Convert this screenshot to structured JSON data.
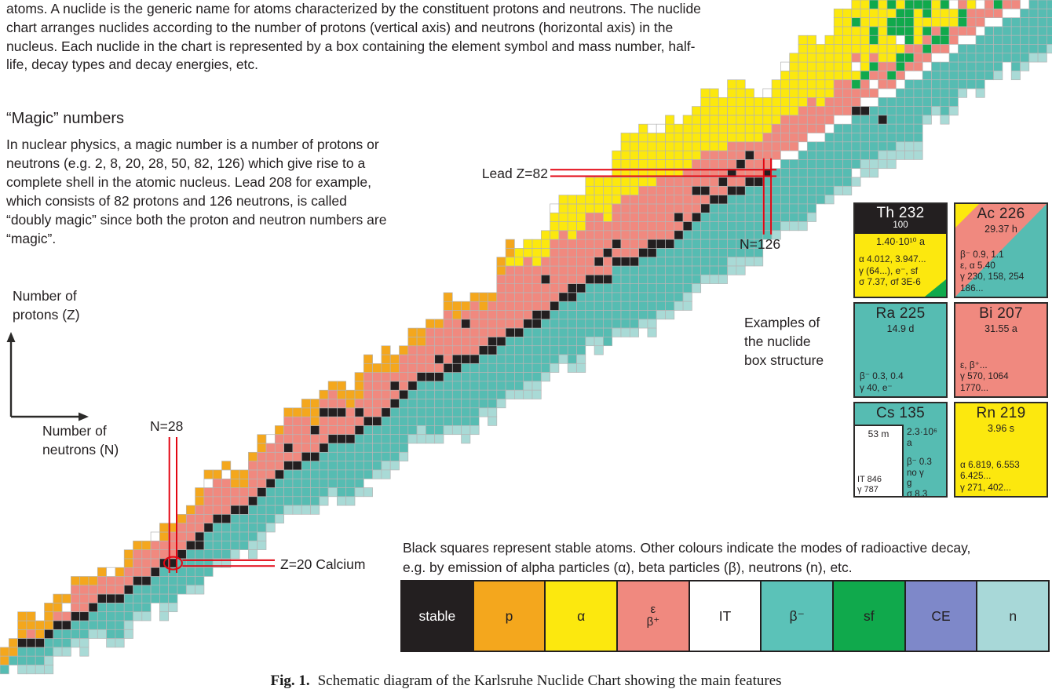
{
  "intro_text": "atoms. A nuclide is the generic name for atoms characterized by the constituent protons and neutrons. The nuclide chart arranges nuclides according to the number of protons (vertical axis) and neutrons (horizontal axis) in the nucleus. Each nuclide in the chart is represented by a box containing the element symbol and mass number, half-life, decay types and decay energies, etc.",
  "magic_numbers": {
    "heading": "“Magic” numbers",
    "body": "In nuclear physics, a magic number is a number of protons or neutrons (e.g. 2, 8, 20, 28, 50, 82, 126) which give rise to a complete shell in the atomic nucleus. Lead 208 for example, which consists of 82 protons and 126 neutrons, is called “doubly magic” since both the proton and neutron numbers are “magic”."
  },
  "axes": {
    "y_label": [
      "Number of",
      "protons (Z)"
    ],
    "x_label": [
      "Number of",
      "neutrons (N)"
    ]
  },
  "annotations": {
    "lead": "Lead Z=82",
    "n126": "N=126",
    "n28": "N=28",
    "z20": "Z=20 Calcium"
  },
  "examples_label": [
    "Examples of",
    "the nuclide",
    "box structure"
  ],
  "nuclide_boxes": [
    {
      "symbol": "Th 232",
      "abundance": "100",
      "halflife": "1.40·10¹⁰ a",
      "lines": [
        "α 4.012, 3.947...",
        "γ (64...), e⁻, sf",
        "σ 7.37, σf 3E-6"
      ]
    },
    {
      "symbol": "Ac 226",
      "halflife": "29.37 h",
      "lines": [
        "β⁻ 0.9, 1.1",
        "ε, α 5.40",
        "γ 230, 158, 254",
        "186..."
      ]
    },
    {
      "symbol": "Ra 225",
      "halflife": "14.9 d",
      "lines": [
        "β⁻ 0.3, 0.4",
        "γ 40, e⁻"
      ]
    },
    {
      "symbol": "Bi 207",
      "halflife": "31.55 a",
      "lines": [
        "ε, β⁺...",
        "γ 570, 1064",
        "1770..."
      ]
    },
    {
      "symbol": "Cs 135",
      "left_halflife": "53 m",
      "left_lines": [
        "IT 846",
        "γ 787"
      ],
      "right_halflife": "2.3·10⁶ a",
      "right_lines": [
        "β⁻ 0.3",
        "no γ",
        "g",
        "σ 8.3"
      ]
    },
    {
      "symbol": "Rn 219",
      "halflife": "3.96 s",
      "lines": [
        "α 6.819, 6.553",
        "6.425...",
        "γ 271, 402..."
      ]
    }
  ],
  "legend": {
    "note_line1": "Black squares represent stable atoms. Other colours indicate the modes of radioactive decay,",
    "note_line2": "e.g. by emission of alpha particles (α), beta particles (β), neutrons (n), etc.",
    "items": [
      {
        "label": "stable",
        "color": "#231f20",
        "text": "#ffffff"
      },
      {
        "label": "p",
        "color": "#f4a71d",
        "text": "#231f20"
      },
      {
        "label": "α",
        "color": "#fce80e",
        "text": "#231f20"
      },
      {
        "label": "ε",
        "label2": "β⁺",
        "color": "#f0897f",
        "text": "#231f20"
      },
      {
        "label": "IT",
        "color": "#ffffff",
        "text": "#231f20"
      },
      {
        "label": "β⁻",
        "color": "#5bc2b8",
        "text": "#231f20"
      },
      {
        "label": "sf",
        "color": "#10a94c",
        "text": "#231f20"
      },
      {
        "label": "CE",
        "color": "#7e88c9",
        "text": "#231f20"
      },
      {
        "label": "n",
        "color": "#a8d8d8",
        "text": "#231f20"
      }
    ]
  },
  "caption": {
    "tag": "Fig. 1.",
    "text": "Schematic diagram of the Karlsruhe Nuclide Chart showing the main features"
  },
  "nuclide_chart": {
    "colors": {
      "black": "#231f20",
      "orange": "#f4a71d",
      "yellow": "#fce80e",
      "pink": "#f0897f",
      "white": "#ffffff",
      "teal": "#56bcb2",
      "green": "#10a94c",
      "lightteal": "#a9dad6",
      "grid": "#b5b5b5",
      "red": "#e30613"
    },
    "extra_black": [
      [
        96,
        12
      ],
      [
        97,
        12
      ],
      [
        99,
        13
      ]
    ]
  }
}
